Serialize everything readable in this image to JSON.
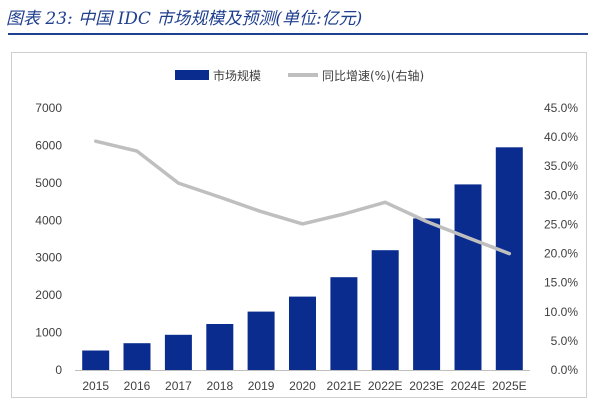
{
  "figure": {
    "title": "图表 23:  中国 IDC 市场规模及预测(单位:亿元)"
  },
  "chart_data": {
    "type": "bar",
    "categories": [
      "2015",
      "2016",
      "2017",
      "2018",
      "2019",
      "2020",
      "2021E",
      "2022E",
      "2023E",
      "2024E",
      "2025E"
    ],
    "series": [
      {
        "name": "市场规模",
        "type": "bar",
        "axis": "left",
        "color": "#0b2c8f",
        "values": [
          520,
          715,
          940,
          1230,
          1560,
          1960,
          2480,
          3200,
          4050,
          4960,
          5950
        ]
      },
      {
        "name": "同比增速(%)(右轴)",
        "type": "line",
        "axis": "right",
        "color": "#bfbfbf",
        "values": [
          39.3,
          37.6,
          32.1,
          29.7,
          27.2,
          25.1,
          26.8,
          28.8,
          25.5,
          22.7,
          20.0
        ]
      }
    ],
    "y_left": {
      "ylim": [
        0,
        7000
      ],
      "ticks": [
        0,
        1000,
        2000,
        3000,
        4000,
        5000,
        6000,
        7000
      ],
      "tick_labels": [
        "0",
        "1000",
        "2000",
        "3000",
        "4000",
        "5000",
        "6000",
        "7000"
      ]
    },
    "y_right": {
      "ylim": [
        0,
        45
      ],
      "ticks": [
        0,
        5,
        10,
        15,
        20,
        25,
        30,
        35,
        40,
        45
      ],
      "tick_labels": [
        "0.0%",
        "5.0%",
        "10.0%",
        "15.0%",
        "20.0%",
        "25.0%",
        "30.0%",
        "35.0%",
        "40.0%",
        "45.0%"
      ]
    },
    "grid": false,
    "legend": "top-center"
  }
}
